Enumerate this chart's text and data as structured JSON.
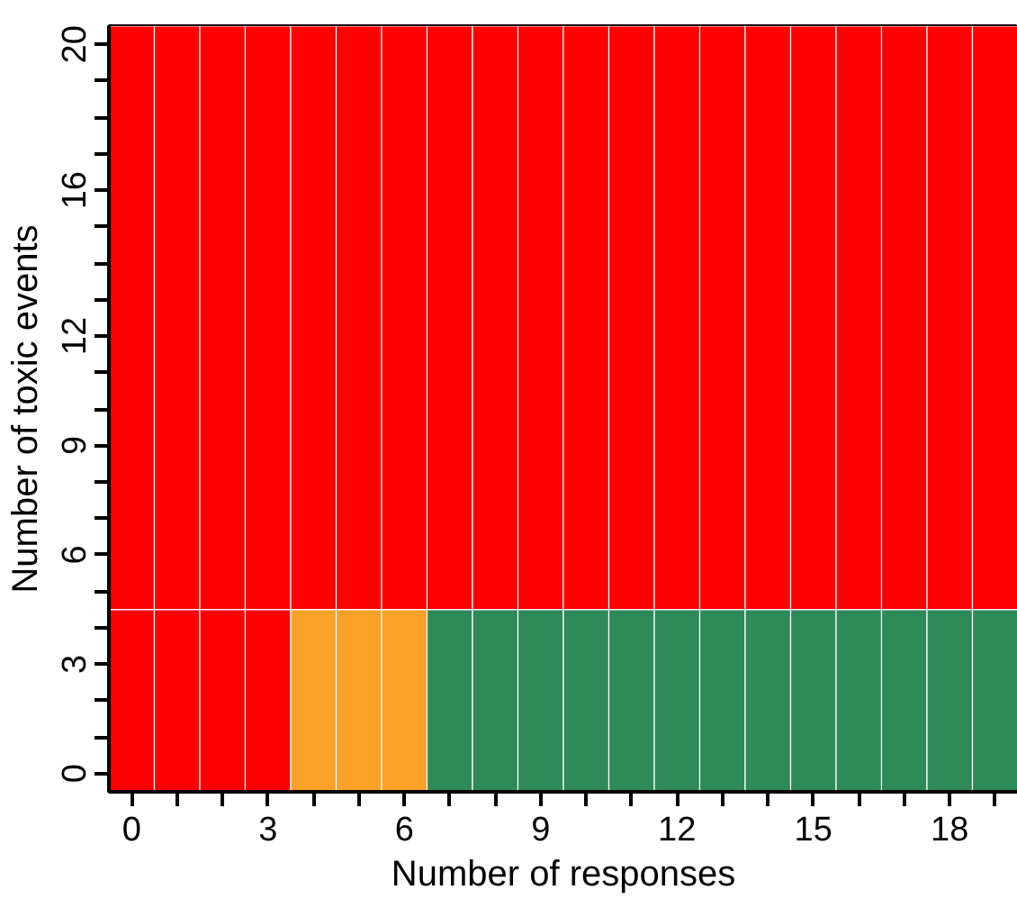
{
  "chart_data": {
    "type": "bar",
    "xlabel": "Number of responses",
    "ylabel": "Number of toxic events",
    "x": [
      0,
      1,
      2,
      3,
      4,
      5,
      6,
      7,
      8,
      9,
      10,
      11,
      12,
      13,
      14,
      15,
      16,
      17,
      18,
      19
    ],
    "series": [
      {
        "colors": [
          "#fe0000",
          "#fe0000",
          "#fe0000",
          "#fe0000",
          "#fba127",
          "#fba127",
          "#fba127",
          "#2e8a59",
          "#2e8a59",
          "#2e8a59",
          "#2e8a59",
          "#2e8a59",
          "#2e8a59",
          "#2e8a59",
          "#2e8a59",
          "#2e8a59",
          "#2e8a59",
          "#2e8a59",
          "#2e8a59",
          "#2e8a59"
        ],
        "base": [
          -0.5,
          -0.5,
          -0.5,
          -0.5,
          -0.5,
          -0.5,
          -0.5,
          -0.5,
          -0.5,
          -0.5,
          -0.5,
          -0.5,
          -0.5,
          -0.5,
          -0.5,
          -0.5,
          -0.5,
          -0.5,
          -0.5,
          -0.5
        ],
        "values": [
          5,
          5,
          5,
          5,
          5,
          5,
          5,
          5,
          5,
          5,
          5,
          5,
          5,
          5,
          5,
          5,
          5,
          5,
          5,
          5
        ]
      },
      {
        "color": "#fe0000",
        "base": [
          4.5,
          4.5,
          4.5,
          4.5,
          4.5,
          4.5,
          4.5,
          4.5,
          4.5,
          4.5,
          4.5,
          4.5,
          4.5,
          4.5,
          4.5,
          4.5,
          4.5,
          4.5,
          4.5,
          4.5
        ],
        "values": [
          16,
          16,
          16,
          16,
          16,
          16,
          16,
          16,
          16,
          16,
          16,
          16,
          16,
          16,
          16,
          16,
          16,
          16,
          16,
          16
        ]
      }
    ],
    "xlim": [
      -0.5,
      19.5
    ],
    "ylim": [
      -0.5,
      20.5
    ],
    "xticks": [
      0,
      {
        "value": 1,
        "label": null
      },
      {
        "value": 2,
        "label": null
      },
      3,
      {
        "value": 4,
        "label": null
      },
      {
        "value": 5,
        "label": null
      },
      6,
      {
        "value": 7,
        "label": null
      },
      {
        "value": 8,
        "label": null
      },
      9,
      {
        "value": 10,
        "label": null
      },
      {
        "value": 11,
        "label": null
      },
      12,
      {
        "value": 13,
        "label": null
      },
      {
        "value": 14,
        "label": null
      },
      15,
      {
        "value": 16,
        "label": null
      },
      {
        "value": 17,
        "label": null
      },
      18,
      {
        "value": 19,
        "label": null
      }
    ],
    "yticks": [
      0,
      {
        "value": 1,
        "label": null
      },
      {
        "value": 2,
        "label": null
      },
      3,
      {
        "value": 4,
        "label": null
      },
      {
        "value": 5,
        "label": null
      },
      6,
      {
        "value": 7,
        "label": null
      },
      {
        "value": 8,
        "label": null
      },
      9,
      {
        "value": 10,
        "label": null
      },
      {
        "value": 11,
        "label": null
      },
      12,
      {
        "value": 13,
        "label": null
      },
      {
        "value": 14,
        "label": null
      },
      {
        "value": 15,
        "label": null
      },
      16,
      {
        "value": 17,
        "label": null
      },
      {
        "value": 18,
        "label": null
      },
      {
        "value": 19,
        "label": null
      },
      20
    ]
  }
}
